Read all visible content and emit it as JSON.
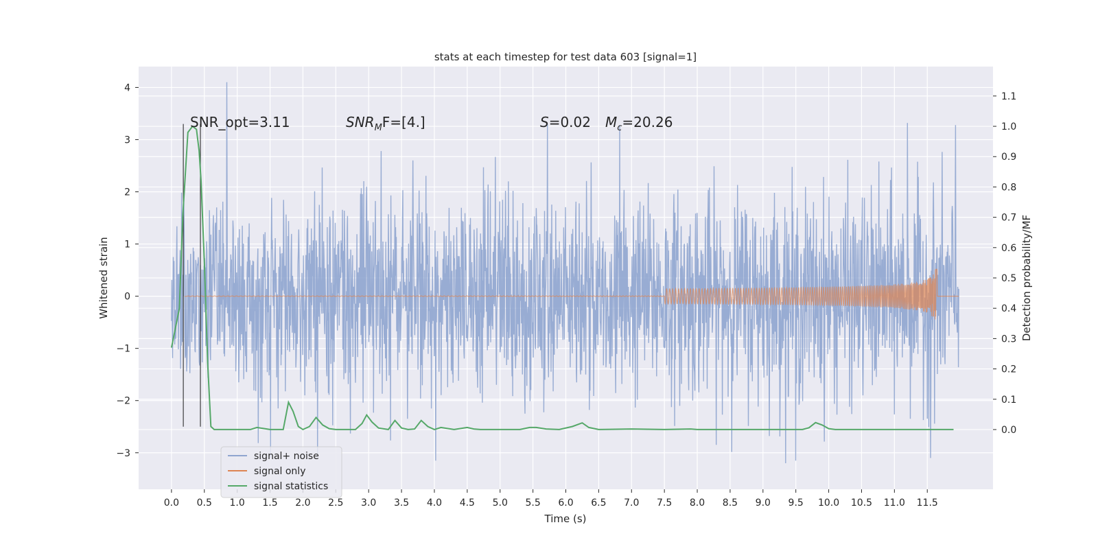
{
  "chart_data": {
    "type": "line",
    "title": "stats at each timestep for test data 603 [signal=1]",
    "xlabel": "Time (s)",
    "ylabel": "Whitened strain",
    "y2label": "Detection probability/MF",
    "xlim": [
      -0.5,
      12.5
    ],
    "ylim": [
      -3.7,
      4.4
    ],
    "y2lim": [
      -0.197,
      1.197
    ],
    "x_ticks": [
      "0.0",
      "0.5",
      "1.0",
      "1.5",
      "2.0",
      "2.5",
      "3.0",
      "3.5",
      "4.0",
      "4.5",
      "5.0",
      "5.5",
      "6.0",
      "6.5",
      "7.0",
      "7.5",
      "8.0",
      "8.5",
      "9.0",
      "9.5",
      "10.0",
      "10.5",
      "11.0",
      "11.5"
    ],
    "y_ticks": [
      "−3",
      "−2",
      "−1",
      "0",
      "1",
      "2",
      "3",
      "4"
    ],
    "y2_ticks": [
      "0.0",
      "0.1",
      "0.2",
      "0.3",
      "0.4",
      "0.5",
      "0.6",
      "0.7",
      "0.8",
      "0.9",
      "1.0",
      "1.1"
    ],
    "grid": true,
    "legend_position": "bottom-left",
    "annotations": {
      "snr_opt": "SNR_opt=3.11",
      "snr_mf_var": "SNR",
      "snr_mf_sub": "M",
      "snr_mf_rest": "F=[4.]",
      "s_var": "S",
      "s_rest": "=0.02",
      "mc_var": "M",
      "mc_sub": "c",
      "mc_rest": "=20.26"
    },
    "series": [
      {
        "name": "signal+ noise",
        "axis": "left",
        "color": "#8fa5cf",
        "description": "whitened noisy strain, roughly N(0,1) with peaks up to 4.1 near 0.85 s"
      },
      {
        "name": "signal only",
        "axis": "left",
        "color": "#dd8452",
        "chirp_end_time": 11.65,
        "peak_amplitude": 0.55
      },
      {
        "name": "signal statistics",
        "axis": "right",
        "color": "#55a868",
        "x": [
          0.0,
          0.12,
          0.17,
          0.25,
          0.32,
          0.38,
          0.42,
          0.45,
          0.5,
          0.55,
          0.6,
          0.65,
          0.7,
          1.0,
          1.2,
          1.3,
          1.5,
          1.6,
          1.7,
          1.78,
          1.85,
          1.93,
          2.0,
          2.1,
          2.2,
          2.3,
          2.4,
          2.5,
          2.6,
          2.8,
          2.9,
          2.97,
          3.05,
          3.15,
          3.3,
          3.4,
          3.5,
          3.6,
          3.7,
          3.8,
          3.9,
          4.0,
          4.1,
          4.3,
          4.5,
          4.6,
          4.7,
          5.0,
          5.3,
          5.45,
          5.55,
          5.7,
          5.9,
          6.1,
          6.25,
          6.35,
          6.5,
          7.0,
          7.5,
          7.9,
          8.0,
          8.5,
          9.0,
          9.6,
          9.7,
          9.8,
          9.9,
          10.0,
          10.1,
          10.5,
          11.0,
          11.5,
          11.9
        ],
        "values": [
          0.27,
          0.4,
          0.7,
          0.98,
          1.0,
          0.99,
          0.92,
          0.82,
          0.55,
          0.22,
          0.01,
          0.0,
          0.0,
          0.0,
          0.0,
          0.007,
          0.0,
          0.0,
          0.0,
          0.09,
          0.06,
          0.01,
          0.0,
          0.01,
          0.04,
          0.015,
          0.003,
          0.0,
          0.0,
          0.0,
          0.02,
          0.048,
          0.025,
          0.005,
          0.0,
          0.03,
          0.005,
          0.0,
          0.002,
          0.03,
          0.01,
          0.0,
          0.007,
          0.0,
          0.007,
          0.002,
          0.0,
          0.0,
          0.0,
          0.007,
          0.007,
          0.002,
          0.0,
          0.01,
          0.022,
          0.007,
          0.0,
          0.002,
          0.0,
          0.002,
          0.0,
          0.0,
          0.0,
          0.0,
          0.006,
          0.023,
          0.015,
          0.003,
          0.0,
          0.0,
          0.0,
          0.0,
          0.0
        ]
      }
    ],
    "vertical_lines": [
      {
        "x": 0.18,
        "y_bottom": -2.5,
        "y_top": 3.3
      },
      {
        "x": 0.44,
        "y_bottom": -2.5,
        "y_top": 3.3
      }
    ]
  }
}
